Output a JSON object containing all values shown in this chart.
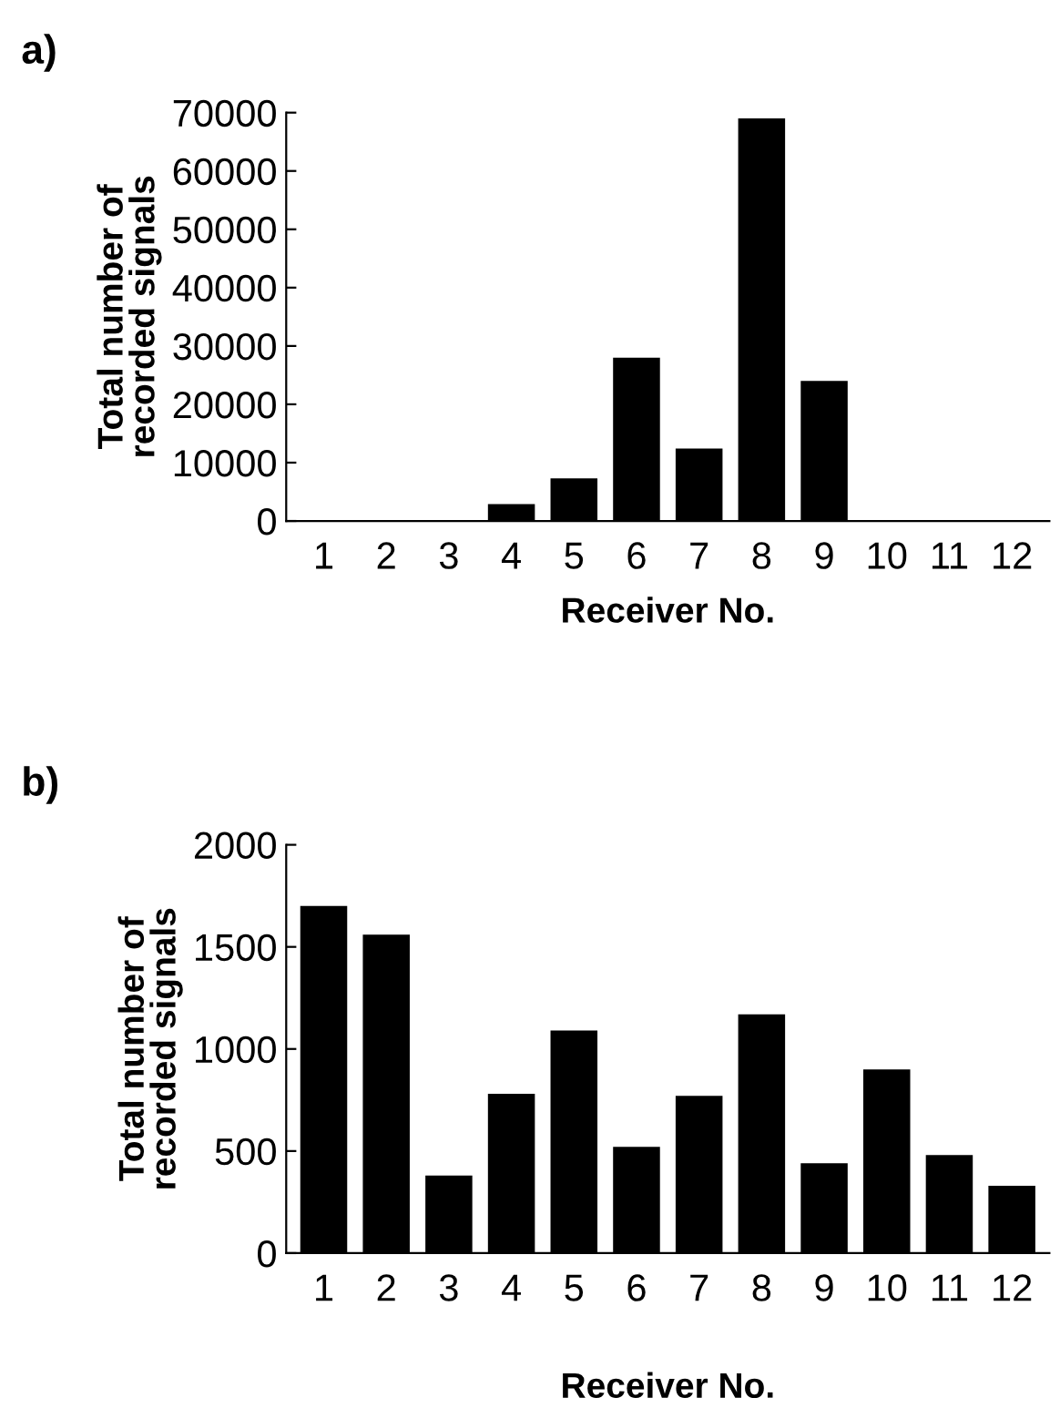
{
  "chart_data": [
    {
      "type": "bar",
      "title": "a)",
      "xlabel": "Receiver No.",
      "ylabel": "Total number of\nrecorded signals",
      "categories": [
        "1",
        "2",
        "3",
        "4",
        "5",
        "6",
        "7",
        "8",
        "9",
        "10",
        "11",
        "12"
      ],
      "values": [
        null,
        null,
        null,
        2900,
        7300,
        28000,
        12400,
        69000,
        24000,
        null,
        null,
        null
      ],
      "color": "#000000",
      "ylim": [
        0,
        70000
      ],
      "yticks": [
        0,
        10000,
        20000,
        30000,
        40000,
        50000,
        60000,
        70000
      ],
      "grid": false
    },
    {
      "type": "bar",
      "title": "b)",
      "xlabel": "Receiver No.",
      "ylabel": "Total number of\nrecorded signals",
      "categories": [
        "1",
        "2",
        "3",
        "4",
        "5",
        "6",
        "7",
        "8",
        "9",
        "10",
        "11",
        "12"
      ],
      "values": [
        1700,
        1560,
        380,
        780,
        1090,
        520,
        770,
        1170,
        440,
        900,
        480,
        330
      ],
      "color": "#000000",
      "ylim": [
        0,
        2000
      ],
      "yticks": [
        0,
        500,
        1000,
        1500,
        2000
      ],
      "grid": false
    }
  ]
}
